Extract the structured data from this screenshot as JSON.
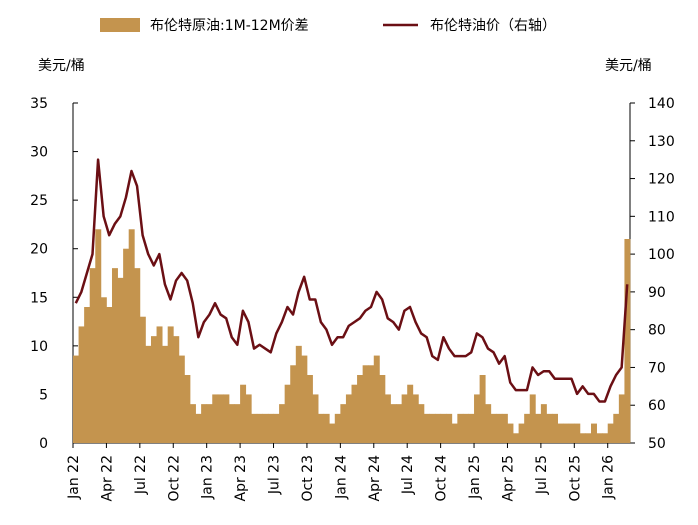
{
  "chart_data": {
    "type": "combo",
    "y_label": "美元/桶",
    "y2_label": "美元/桶",
    "categories": [
      "Jan 22",
      null,
      null,
      null,
      null,
      null,
      "Apr 22",
      null,
      null,
      null,
      null,
      null,
      "Jul 22",
      null,
      null,
      null,
      null,
      null,
      "Oct 22",
      null,
      null,
      null,
      null,
      null,
      "Jan 23",
      null,
      null,
      null,
      null,
      null,
      "Apr 23",
      null,
      null,
      null,
      null,
      null,
      "Jul 23",
      null,
      null,
      null,
      null,
      null,
      "Oct 23",
      null,
      null,
      null,
      null,
      null,
      "Jan 24",
      null,
      null,
      null,
      null,
      null,
      "Apr 24",
      null,
      null,
      null,
      null,
      null,
      "Jul 24",
      null,
      null,
      null,
      null,
      null,
      "Oct 24",
      null,
      null,
      null,
      null,
      null,
      "Jan 25",
      null,
      null,
      null,
      null,
      null,
      "Apr 25",
      null,
      null,
      null,
      null,
      null,
      "Jul 25",
      null,
      null,
      null,
      null,
      null,
      "Oct 25",
      null,
      null,
      null,
      null,
      null,
      "Jan 26",
      null,
      null,
      null
    ],
    "series": [
      {
        "name": "布伦特原油:1M-12M价差",
        "type": "bar",
        "color": "#c4944e",
        "values": [
          9,
          12,
          14,
          18,
          22,
          15,
          14,
          18,
          17,
          20,
          22,
          18,
          13,
          10,
          11,
          12,
          10,
          12,
          11,
          9,
          7,
          4,
          3,
          4,
          4,
          5,
          5,
          5,
          4,
          4,
          6,
          5,
          3,
          3,
          3,
          3,
          3,
          4,
          6,
          8,
          10,
          9,
          7,
          5,
          3,
          3,
          2,
          3,
          4,
          5,
          6,
          7,
          8,
          8,
          9,
          7,
          5,
          4,
          4,
          5,
          6,
          5,
          4,
          3,
          3,
          3,
          3,
          3,
          2,
          3,
          3,
          3,
          5,
          7,
          4,
          3,
          3,
          3,
          2,
          1,
          2,
          3,
          5,
          3,
          4,
          3,
          3,
          2,
          2,
          2,
          2,
          1,
          1,
          2,
          1,
          1,
          2,
          3,
          5,
          21
        ]
      },
      {
        "name": "布伦特油价（右轴）",
        "type": "line",
        "axis": "y2",
        "color": "#6b0f14",
        "values": [
          87,
          90,
          95,
          100,
          125,
          110,
          105,
          108,
          110,
          115,
          122,
          118,
          105,
          100,
          97,
          100,
          92,
          88,
          93,
          95,
          93,
          87,
          78,
          82,
          84,
          87,
          84,
          83,
          78,
          76,
          85,
          82,
          75,
          76,
          75,
          74,
          79,
          82,
          86,
          84,
          90,
          94,
          88,
          88,
          82,
          80,
          76,
          78,
          78,
          81,
          82,
          83,
          85,
          86,
          90,
          88,
          83,
          82,
          80,
          85,
          86,
          82,
          79,
          78,
          73,
          72,
          78,
          75,
          73,
          73,
          73,
          74,
          79,
          78,
          75,
          74,
          71,
          73,
          66,
          64,
          64,
          64,
          70,
          68,
          69,
          69,
          67,
          67,
          67,
          67,
          63,
          65,
          63,
          63,
          61,
          61,
          65,
          68,
          70,
          92
        ]
      }
    ],
    "ylim": [
      0,
      35
    ],
    "yticks": [
      0,
      5,
      10,
      15,
      20,
      25,
      30,
      35
    ],
    "y2lim": [
      50,
      140
    ],
    "y2ticks": [
      50,
      60,
      70,
      80,
      90,
      100,
      110,
      120,
      130,
      140
    ]
  }
}
